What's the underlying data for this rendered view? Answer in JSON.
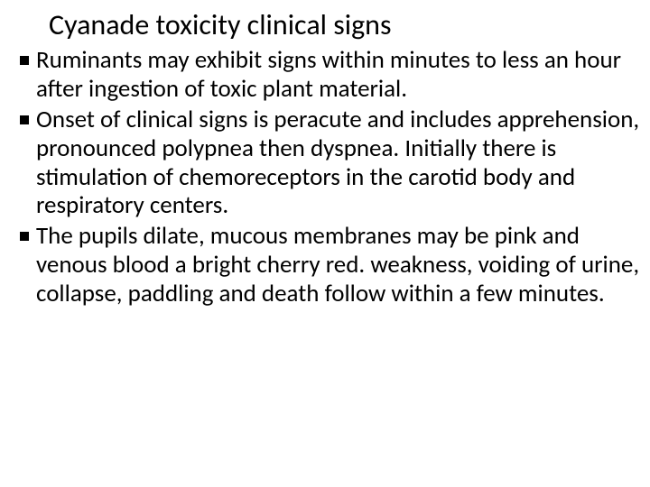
{
  "title": "Cyanade toxicity clinical signs",
  "bullets": [
    "Ruminants may exhibit signs within minutes to less an hour after ingestion of toxic plant material.",
    "Onset of clinical signs is peracute and includes apprehension, pronounced polypnea then dyspnea. Initially there is stimulation of chemoreceptors in the carotid body and respiratory centers.",
    "The pupils dilate, mucous membranes may be pink and venous blood a bright cherry red. weakness, voiding of urine, collapse, paddling and death follow within a few minutes."
  ],
  "style": {
    "background_color": "#ffffff",
    "text_color": "#000000",
    "title_fontsize": 32,
    "body_fontsize": 27,
    "bullet_marker": "square",
    "bullet_marker_color": "#000000",
    "font_family": "Calibri"
  }
}
